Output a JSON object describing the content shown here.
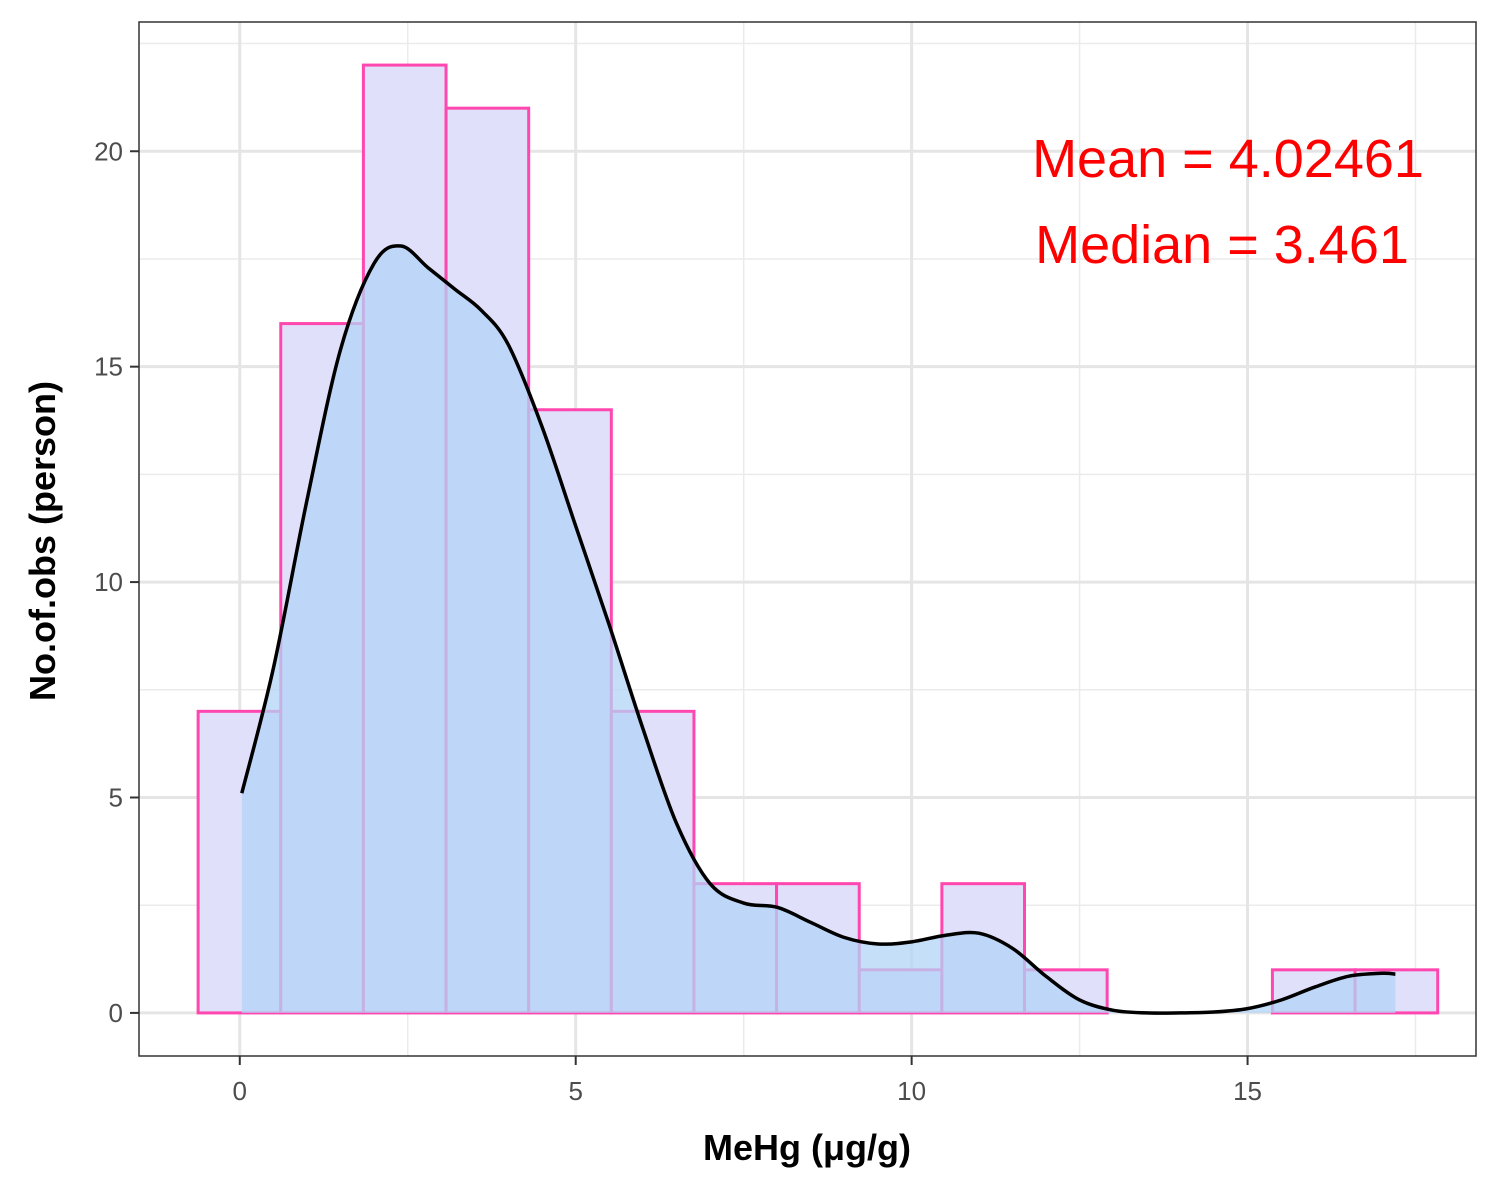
{
  "chart_data": {
    "type": "histogram",
    "xlabel": "MeHg (μg/g)",
    "ylabel": "No.of.obs (person)",
    "xlim": [
      -1.5,
      18.4
    ],
    "ylim": [
      -1.0,
      23.0
    ],
    "x_ticks": [
      0,
      5,
      10,
      15
    ],
    "x_tick_labels": [
      "0",
      "5",
      "10",
      "15"
    ],
    "y_ticks": [
      0,
      5,
      10,
      15,
      20
    ],
    "y_tick_labels": [
      "0",
      "5",
      "10",
      "15",
      "20"
    ],
    "grid": true,
    "bins": [
      {
        "x0": -0.62,
        "x1": 0.61,
        "count": 7
      },
      {
        "x0": 0.61,
        "x1": 1.84,
        "count": 16
      },
      {
        "x0": 1.84,
        "x1": 3.07,
        "count": 22
      },
      {
        "x0": 3.07,
        "x1": 4.3,
        "count": 21
      },
      {
        "x0": 4.3,
        "x1": 5.53,
        "count": 14
      },
      {
        "x0": 5.53,
        "x1": 6.76,
        "count": 7
      },
      {
        "x0": 6.76,
        "x1": 7.99,
        "count": 3
      },
      {
        "x0": 7.99,
        "x1": 9.22,
        "count": 3
      },
      {
        "x0": 9.22,
        "x1": 10.45,
        "count": 1
      },
      {
        "x0": 10.45,
        "x1": 11.68,
        "count": 3
      },
      {
        "x0": 11.68,
        "x1": 12.91,
        "count": 1
      },
      {
        "x0": 15.37,
        "x1": 16.6,
        "count": 1
      },
      {
        "x0": 16.6,
        "x1": 17.83,
        "count": 1
      }
    ],
    "density_curve": {
      "x": [
        0.03,
        0.5,
        1.0,
        1.5,
        2.0,
        2.4,
        2.8,
        3.2,
        3.6,
        4.0,
        4.5,
        5.0,
        5.5,
        6.0,
        6.5,
        7.0,
        7.5,
        8.0,
        8.5,
        9.0,
        9.5,
        10.0,
        10.5,
        11.0,
        11.5,
        12.0,
        12.5,
        13.0,
        13.5,
        14.0,
        14.5,
        15.0,
        15.5,
        16.0,
        16.5,
        17.0,
        17.2
      ],
      "y": [
        5.1,
        8.0,
        11.9,
        15.4,
        17.4,
        17.8,
        17.3,
        16.8,
        16.3,
        15.5,
        13.6,
        11.3,
        9.0,
        6.6,
        4.4,
        3.0,
        2.55,
        2.45,
        2.1,
        1.75,
        1.6,
        1.65,
        1.8,
        1.85,
        1.5,
        0.85,
        0.3,
        0.06,
        0.0,
        0.0,
        0.02,
        0.1,
        0.3,
        0.6,
        0.85,
        0.92,
        0.9
      ]
    },
    "colors": {
      "bar_fill": "#e0e0fa",
      "bar_outline": "#ff47b0",
      "density_fill": "#b3d4f7",
      "density_line": "#000000",
      "annotation": "#ff0000"
    },
    "annotations": [
      {
        "label": "Mean",
        "value": "4.02461"
      },
      {
        "label": "Median",
        "value": "3.461"
      }
    ]
  }
}
